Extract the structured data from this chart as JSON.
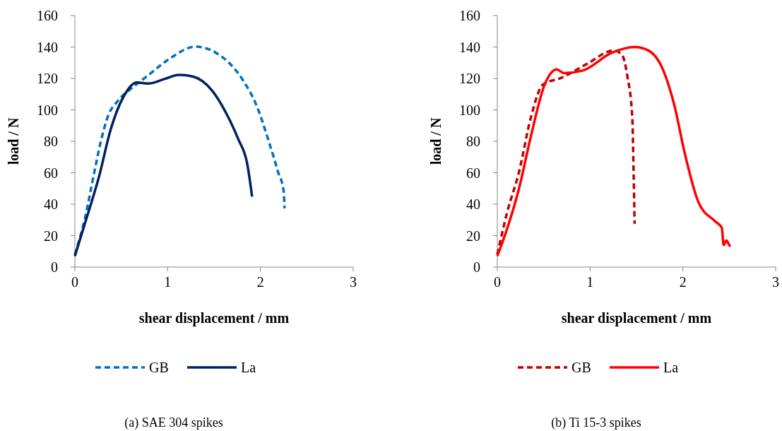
{
  "chart_data": [
    {
      "type": "line",
      "xlabel": "shear displacement / mm",
      "ylabel": "load / N",
      "annotations": [
        "(a) SAE 304 spikes"
      ],
      "xlim": [
        0,
        3
      ],
      "ylim": [
        0,
        160
      ],
      "xticks": [
        0,
        1,
        2,
        3
      ],
      "yticks": [
        0,
        20,
        40,
        60,
        80,
        100,
        120,
        140,
        160
      ],
      "grid": false,
      "legend": "bottom",
      "series": [
        {
          "name": "GB",
          "color": "#0070c0",
          "line_style": "dashed",
          "x": [
            0,
            0.107,
            0.21,
            0.28,
            0.36,
            0.46,
            0.61,
            0.79,
            1.02,
            1.3,
            1.53,
            1.81,
            1.96,
            2.09,
            2.19,
            2.25,
            2.26
          ],
          "values": [
            8,
            30.6,
            60.5,
            80,
            96.5,
            105.5,
            113.7,
            122,
            132.5,
            140.2,
            136,
            119,
            102.5,
            80,
            60.5,
            48.5,
            37.3
          ]
        },
        {
          "name": "La",
          "color": "#002060",
          "line_style": "solid",
          "x": [
            0,
            0.107,
            0.26,
            0.386,
            0.54,
            0.665,
            0.79,
            0.97,
            1.12,
            1.27,
            1.48,
            1.63,
            1.76,
            1.86,
            1.91
          ],
          "values": [
            7,
            27.5,
            57.5,
            87.5,
            110,
            117.4,
            116.7,
            119.7,
            122.2,
            121.2,
            112.2,
            98,
            81.5,
            65,
            44.8
          ]
        }
      ]
    },
    {
      "type": "line",
      "xlabel": "shear displacement / mm",
      "ylabel": "load / N",
      "annotations": [
        "(b) Ti 15-3 spikes"
      ],
      "xlim": [
        0,
        3
      ],
      "ylim": [
        0,
        160
      ],
      "xticks": [
        0,
        1,
        2,
        3
      ],
      "yticks": [
        0,
        20,
        40,
        60,
        80,
        100,
        120,
        140,
        160
      ],
      "grid": false,
      "legend": "bottom",
      "series": [
        {
          "name": "GB",
          "color": "#c00000",
          "line_style": "dashed",
          "x": [
            0,
            0.107,
            0.234,
            0.361,
            0.49,
            0.69,
            0.97,
            1.25,
            1.34,
            1.4,
            1.455,
            1.47,
            1.48
          ],
          "values": [
            8,
            35,
            60.5,
            95,
            116,
            120.4,
            129.4,
            137.7,
            135.4,
            122,
            95,
            57.5,
            27.5
          ]
        },
        {
          "name": "La",
          "color": "#ff0000",
          "line_style": "solid",
          "x": [
            0,
            0.107,
            0.234,
            0.361,
            0.51,
            0.64,
            0.72,
            0.92,
            1.23,
            1.48,
            1.63,
            1.79,
            1.91,
            2.02,
            2.17,
            2.35,
            2.42,
            2.44,
            2.47,
            2.49,
            2.51
          ],
          "values": [
            7,
            24.6,
            50,
            83,
            116,
            125.7,
            123.4,
            125,
            136.2,
            140,
            137.7,
            125,
            102.5,
            72.5,
            41,
            29,
            25,
            14,
            17,
            15,
            13
          ]
        }
      ]
    }
  ]
}
